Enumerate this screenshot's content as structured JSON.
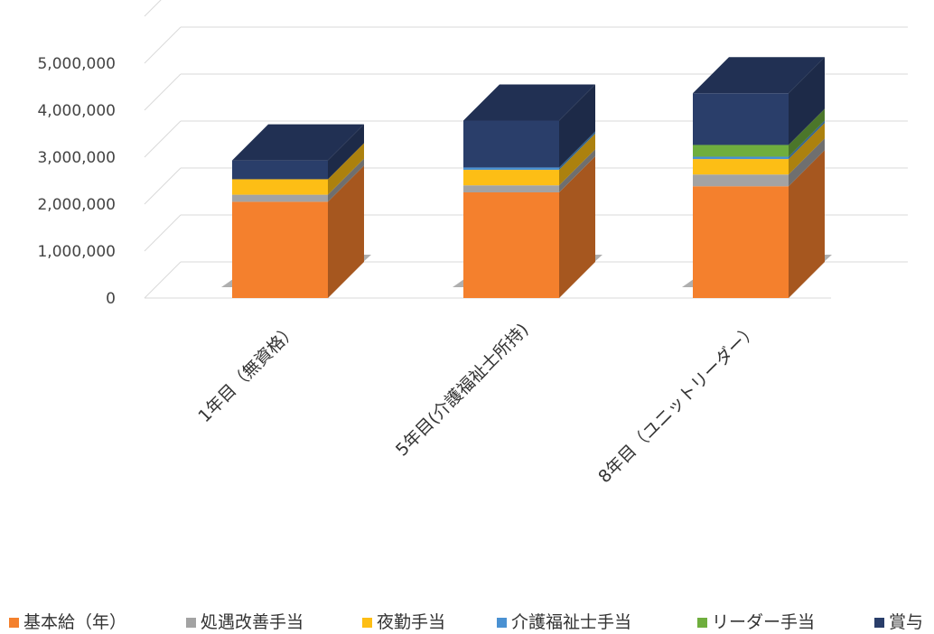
{
  "chart_data": {
    "type": "bar",
    "stacked": true,
    "style": "3d",
    "categories": [
      "1年目（無資格）",
      "5年目(介護福祉士所持)",
      "8年目（ユニットリーダー）"
    ],
    "series": [
      {
        "name": "基本給（年）",
        "color": "#F4802D",
        "values": [
          2050000,
          2250000,
          2380000
        ]
      },
      {
        "name": "処遇改善手当",
        "color": "#A3A3A3",
        "values": [
          150000,
          150000,
          250000
        ]
      },
      {
        "name": "夜勤手当",
        "color": "#FDBE15",
        "values": [
          330000,
          330000,
          330000
        ]
      },
      {
        "name": "介護福祉士手当",
        "color": "#4A91D2",
        "values": [
          0,
          50000,
          50000
        ]
      },
      {
        "name": "リーダー手当",
        "color": "#6FAE3E",
        "values": [
          0,
          0,
          250000
        ]
      },
      {
        "name": "賞与",
        "color": "#2A3E6A",
        "values": [
          400000,
          1000000,
          1100000
        ]
      }
    ],
    "y_ticks": [
      "0",
      "1,000,000",
      "2,000,000",
      "3,000,000",
      "4,000,000",
      "5,000,000"
    ],
    "ylim": [
      0,
      6000000
    ],
    "grid": true,
    "legend_position": "bottom"
  }
}
